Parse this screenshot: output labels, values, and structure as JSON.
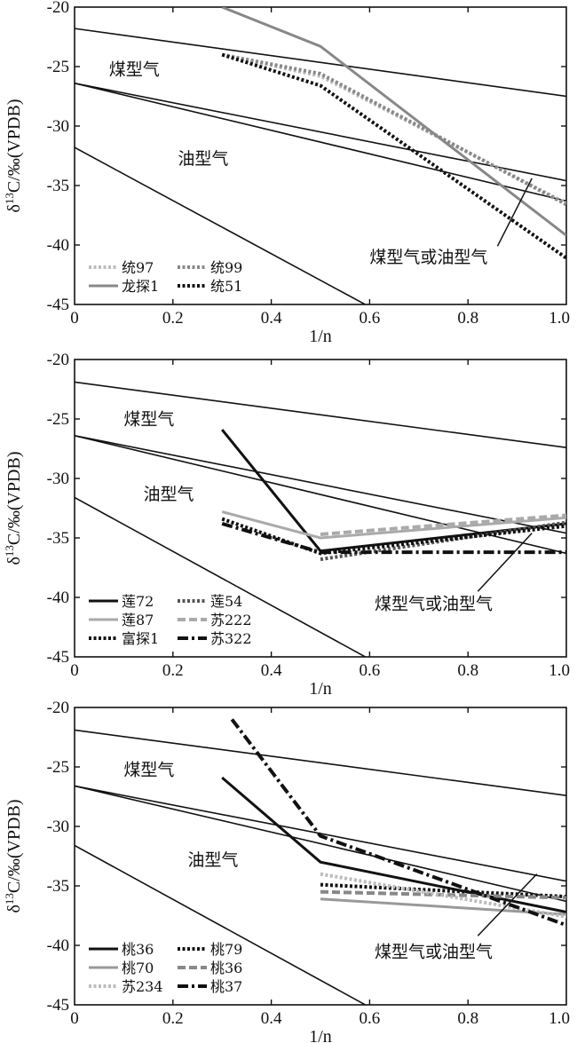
{
  "chart_data": [
    {
      "type": "line",
      "xlabel": "1/n",
      "ylabel": "δ13C/‰(VPDB)",
      "xlim": [
        0,
        1.0
      ],
      "ylim": [
        -45,
        -20
      ],
      "xticks": [
        "0",
        "0.2",
        "0.4",
        "0.6",
        "0.8",
        "1.0"
      ],
      "yticks": [
        "-20",
        "-25",
        "-30",
        "-35",
        "-40",
        "-45"
      ],
      "grid": false,
      "reference_lines": [
        {
          "x": [
            0,
            1.0
          ],
          "y": [
            -21.8,
            -27.5
          ]
        },
        {
          "x": [
            0,
            1.0
          ],
          "y": [
            -26.4,
            -34.6
          ]
        },
        {
          "x": [
            0,
            1.0
          ],
          "y": [
            -26.4,
            -36.3
          ]
        },
        {
          "x": [
            0,
            0.6
          ],
          "y": [
            -31.8,
            -45.2
          ]
        }
      ],
      "annotations": [
        {
          "text": "煤型气",
          "x": 0.07,
          "y": -25.7
        },
        {
          "text": "油型气",
          "x": 0.21,
          "y": -33.2
        },
        {
          "text": "煤型气或油型气",
          "x": 0.6,
          "y": -41.5
        }
      ],
      "pointer": {
        "x": [
          0.86,
          0.93
        ],
        "y": [
          -40.1,
          -34.4
        ]
      },
      "legend_position": "bottom-left",
      "series": [
        {
          "name": "统97",
          "x": [
            0.3,
            0.5,
            1.0
          ],
          "y": [
            -24.0,
            -25.8,
            -36.5
          ],
          "color": "#bbbbbb",
          "style": "dotted",
          "width": 4
        },
        {
          "name": "统99",
          "x": [
            0.3,
            0.5,
            1.0
          ],
          "y": [
            -24.0,
            -25.6,
            -36.6
          ],
          "color": "#888888",
          "style": "dotted",
          "width": 4
        },
        {
          "name": "龙探1",
          "x": [
            0.3,
            0.5,
            1.0
          ],
          "y": [
            -20.0,
            -23.3,
            -39.2
          ],
          "color": "#888888",
          "style": "solid",
          "width": 3
        },
        {
          "name": "统51",
          "x": [
            0.3,
            0.5,
            1.0
          ],
          "y": [
            -24.0,
            -26.6,
            -41.1
          ],
          "color": "#111111",
          "style": "dotted",
          "width": 4
        }
      ]
    },
    {
      "type": "line",
      "xlabel": "1/n",
      "ylabel": "δ13C/‰(VPDB)",
      "xlim": [
        0,
        1.0
      ],
      "ylim": [
        -45,
        -20
      ],
      "xticks": [
        "0",
        "0.2",
        "0.4",
        "0.6",
        "0.8",
        "1.0"
      ],
      "yticks": [
        "-20",
        "-25",
        "-30",
        "-35",
        "-40",
        "-45"
      ],
      "grid": false,
      "reference_lines": [
        {
          "x": [
            0,
            1.0
          ],
          "y": [
            -21.9,
            -27.4
          ]
        },
        {
          "x": [
            0,
            1.0
          ],
          "y": [
            -26.4,
            -34.6
          ]
        },
        {
          "x": [
            0,
            1.0
          ],
          "y": [
            -26.4,
            -36.3
          ]
        },
        {
          "x": [
            0,
            0.6
          ],
          "y": [
            -31.6,
            -45.2
          ]
        }
      ],
      "annotations": [
        {
          "text": "煤型气",
          "x": 0.1,
          "y": -25.5
        },
        {
          "text": "油型气",
          "x": 0.14,
          "y": -31.8
        },
        {
          "text": "煤型气或油型气",
          "x": 0.61,
          "y": -41.0
        }
      ],
      "pointer": {
        "x": [
          0.82,
          0.93
        ],
        "y": [
          -39.5,
          -34.6
        ]
      },
      "legend_position": "bottom-left",
      "series": [
        {
          "name": "莲72",
          "x": [
            0.3,
            0.5,
            1.0
          ],
          "y": [
            -25.9,
            -36.1,
            -33.8
          ],
          "color": "#111111",
          "style": "solid",
          "width": 3
        },
        {
          "name": "莲54",
          "x": [
            0.5,
            1.0
          ],
          "y": [
            -36.8,
            -33.7
          ],
          "color": "#555555",
          "style": "dotted",
          "width": 4
        },
        {
          "name": "莲87",
          "x": [
            0.3,
            0.5,
            1.0
          ],
          "y": [
            -32.8,
            -35.0,
            -33.3
          ],
          "color": "#aaaaaa",
          "style": "solid",
          "width": 3
        },
        {
          "name": "苏222",
          "x": [
            0.5,
            1.0
          ],
          "y": [
            -34.7,
            -33.1
          ],
          "color": "#aaaaaa",
          "style": "dashed",
          "width": 4
        },
        {
          "name": "富探1",
          "x": [
            0.3,
            0.5,
            1.0
          ],
          "y": [
            -33.4,
            -36.3,
            -34.0
          ],
          "color": "#111111",
          "style": "dotted",
          "width": 4
        },
        {
          "name": "苏322",
          "x": [
            0.3,
            0.5,
            1.0
          ],
          "y": [
            -33.8,
            -36.2,
            -36.2
          ],
          "color": "#111111",
          "style": "dashdot",
          "width": 4
        }
      ]
    },
    {
      "type": "line",
      "xlabel": "1/n",
      "ylabel": "δ13C/‰(VPDB)",
      "xlim": [
        0,
        1.0
      ],
      "ylim": [
        -45,
        -20
      ],
      "xticks": [
        "0",
        "0.2",
        "0.4",
        "0.6",
        "0.8",
        "1.0"
      ],
      "yticks": [
        "-20",
        "-25",
        "-30",
        "-35",
        "-40",
        "-45"
      ],
      "grid": false,
      "reference_lines": [
        {
          "x": [
            0,
            1.0
          ],
          "y": [
            -21.9,
            -27.4
          ]
        },
        {
          "x": [
            0,
            1.0
          ],
          "y": [
            -26.6,
            -34.6
          ]
        },
        {
          "x": [
            0,
            1.0
          ],
          "y": [
            -26.6,
            -36.3
          ]
        },
        {
          "x": [
            0,
            0.6
          ],
          "y": [
            -31.6,
            -45.2
          ]
        }
      ],
      "annotations": [
        {
          "text": "煤型气",
          "x": 0.1,
          "y": -25.7
        },
        {
          "text": "油型气",
          "x": 0.23,
          "y": -33.3
        },
        {
          "text": "煤型气或油型气",
          "x": 0.61,
          "y": -41.0
        }
      ],
      "pointer": {
        "x": [
          0.82,
          0.94
        ],
        "y": [
          -39.2,
          -34.0
        ]
      },
      "legend_position": "bottom-left",
      "series": [
        {
          "name": "桃36",
          "x": [
            0.3,
            0.5,
            1.0
          ],
          "y": [
            -25.9,
            -33.0,
            -37.2
          ],
          "color": "#111111",
          "style": "solid",
          "width": 3
        },
        {
          "name": "桃79",
          "x": [
            0.5,
            1.0
          ],
          "y": [
            -34.9,
            -35.9
          ],
          "color": "#111111",
          "style": "dotted",
          "width": 4
        },
        {
          "name": "桃70",
          "x": [
            0.5,
            1.0
          ],
          "y": [
            -36.1,
            -37.4
          ],
          "color": "#999999",
          "style": "solid",
          "width": 3
        },
        {
          "name": "桃36",
          "x": [
            0.5,
            1.0
          ],
          "y": [
            -35.5,
            -36.0
          ],
          "color": "#888888",
          "style": "dashed",
          "width": 4
        },
        {
          "name": "苏234",
          "x": [
            0.5,
            1.0
          ],
          "y": [
            -34.0,
            -37.6
          ],
          "color": "#bbbbbb",
          "style": "dotted",
          "width": 4
        },
        {
          "name": "桃37",
          "x": [
            0.32,
            0.5,
            1.0
          ],
          "y": [
            -21.0,
            -30.8,
            -38.3
          ],
          "color": "#111111",
          "style": "dashdot",
          "width": 4
        }
      ]
    }
  ]
}
